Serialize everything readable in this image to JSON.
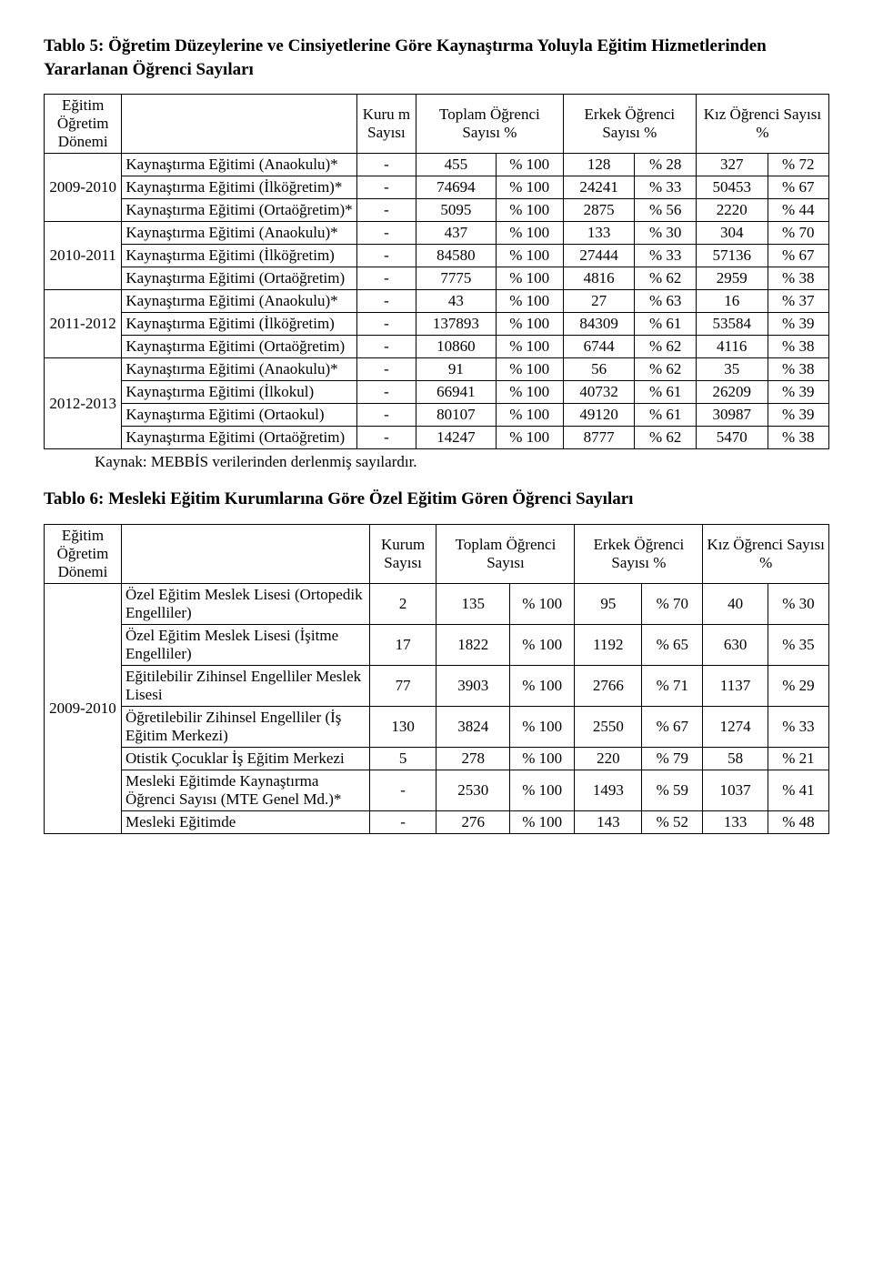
{
  "table5": {
    "title": "Tablo 5: Öğretim Düzeylerine ve Cinsiyetlerine Göre Kaynaştırma Yoluyla Eğitim Hizmetlerinden Yararlanan Öğrenci Sayıları",
    "source_note": "Kaynak: MEBBİS verilerinden derlenmiş sayılardır.",
    "headers": {
      "period": "Eğitim Öğretim Dönemi",
      "kurum": "Kuru\nm Sayısı",
      "toplam": "Toplam Öğrenci Sayısı %",
      "erkek": "Erkek Öğrenci Sayısı %",
      "kiz": "Kız Öğrenci Sayısı %"
    },
    "periods": [
      {
        "period": "2009-2010",
        "rows": [
          {
            "label": "Kaynaştırma Eğitimi (Anaokulu)*",
            "k": "-",
            "t": "455",
            "tp": "% 100",
            "e": "128",
            "ep": "% 28",
            "g": "327",
            "gp": "% 72"
          },
          {
            "label": "Kaynaştırma Eğitimi (İlköğretim)*",
            "k": "-",
            "t": "74694",
            "tp": "% 100",
            "e": "24241",
            "ep": "% 33",
            "g": "50453",
            "gp": "% 67"
          },
          {
            "label": "Kaynaştırma Eğitimi (Ortaöğretim)*",
            "k": "-",
            "t": "5095",
            "tp": "% 100",
            "e": "2875",
            "ep": "% 56",
            "g": "2220",
            "gp": "% 44"
          }
        ]
      },
      {
        "period": "2010-2011",
        "rows": [
          {
            "label": "Kaynaştırma Eğitimi (Anaokulu)*",
            "k": "-",
            "t": "437",
            "tp": "% 100",
            "e": "133",
            "ep": "% 30",
            "g": "304",
            "gp": "% 70"
          },
          {
            "label": "Kaynaştırma Eğitimi (İlköğretim)",
            "k": "-",
            "t": "84580",
            "tp": "% 100",
            "e": "27444",
            "ep": "% 33",
            "g": "57136",
            "gp": "% 67"
          },
          {
            "label": "Kaynaştırma Eğitimi (Ortaöğretim)",
            "k": "-",
            "t": "7775",
            "tp": "% 100",
            "e": "4816",
            "ep": "% 62",
            "g": "2959",
            "gp": "% 38"
          }
        ]
      },
      {
        "period": "2011-2012",
        "rows": [
          {
            "label": "Kaynaştırma Eğitimi (Anaokulu)*",
            "k": "-",
            "t": "43",
            "tp": "% 100",
            "e": "27",
            "ep": "% 63",
            "g": "16",
            "gp": "% 37"
          },
          {
            "label": "Kaynaştırma Eğitimi (İlköğretim)",
            "k": "-",
            "t": "137893",
            "tp": "% 100",
            "e": "84309",
            "ep": "% 61",
            "g": "53584",
            "gp": "% 39"
          },
          {
            "label": "Kaynaştırma Eğitimi (Ortaöğretim)",
            "k": "-",
            "t": "10860",
            "tp": "% 100",
            "e": "6744",
            "ep": "% 62",
            "g": "4116",
            "gp": "% 38"
          }
        ]
      },
      {
        "period": "2012-2013",
        "rows": [
          {
            "label": "Kaynaştırma Eğitimi (Anaokulu)*",
            "k": "-",
            "t": "91",
            "tp": "% 100",
            "e": "56",
            "ep": "% 62",
            "g": "35",
            "gp": "% 38"
          },
          {
            "label": "Kaynaştırma Eğitimi (İlkokul)",
            "k": "-",
            "t": "66941",
            "tp": "% 100",
            "e": "40732",
            "ep": "% 61",
            "g": "26209",
            "gp": "% 39"
          },
          {
            "label": "Kaynaştırma Eğitimi (Ortaokul)",
            "k": "-",
            "t": "80107",
            "tp": "% 100",
            "e": "49120",
            "ep": "% 61",
            "g": "30987",
            "gp": "% 39"
          },
          {
            "label": "Kaynaştırma Eğitimi (Ortaöğretim)",
            "k": "-",
            "t": "14247",
            "tp": "% 100",
            "e": "8777",
            "ep": "% 62",
            "g": "5470",
            "gp": "% 38"
          }
        ]
      }
    ]
  },
  "table6": {
    "title": "Tablo 6: Mesleki Eğitim Kurumlarına Göre Özel Eğitim Gören Öğrenci Sayıları",
    "headers": {
      "period": "Eğitim Öğretim Dönemi",
      "kurum": "Kurum Sayısı",
      "toplam": "Toplam Öğrenci Sayısı",
      "erkek": "Erkek Öğrenci Sayısı %",
      "kiz": "Kız Öğrenci Sayısı %"
    },
    "period": "2009-2010",
    "rows": [
      {
        "label": "Özel Eğitim Meslek Lisesi (Ortopedik Engelliler)",
        "k": "2",
        "t": "135",
        "tp": "% 100",
        "e": "95",
        "ep": "% 70",
        "g": "40",
        "gp": "% 30"
      },
      {
        "label": "Özel Eğitim Meslek Lisesi (İşitme Engelliler)",
        "k": "17",
        "t": "1822",
        "tp": "% 100",
        "e": "1192",
        "ep": "% 65",
        "g": "630",
        "gp": "% 35"
      },
      {
        "label": "Eğitilebilir Zihinsel Engelliler Meslek Lisesi",
        "k": "77",
        "t": "3903",
        "tp": "% 100",
        "e": "2766",
        "ep": "% 71",
        "g": "1137",
        "gp": "% 29"
      },
      {
        "label": "Öğretilebilir Zihinsel Engelliler (İş Eğitim Merkezi)",
        "k": "130",
        "t": "3824",
        "tp": "% 100",
        "e": "2550",
        "ep": "% 67",
        "g": "1274",
        "gp": "% 33"
      },
      {
        "label": "Otistik Çocuklar İş Eğitim Merkezi",
        "k": "5",
        "t": "278",
        "tp": "% 100",
        "e": "220",
        "ep": "% 79",
        "g": "58",
        "gp": "% 21"
      },
      {
        "label": "Mesleki Eğitimde Kaynaştırma Öğrenci Sayısı (MTE Genel Md.)*",
        "k": "-",
        "t": "2530",
        "tp": "% 100",
        "e": "1493",
        "ep": "% 59",
        "g": "1037",
        "gp": "% 41"
      },
      {
        "label": "Mesleki Eğitimde",
        "k": "-",
        "t": "276",
        "tp": "% 100",
        "e": "143",
        "ep": "% 52",
        "g": "133",
        "gp": "% 48"
      }
    ]
  }
}
